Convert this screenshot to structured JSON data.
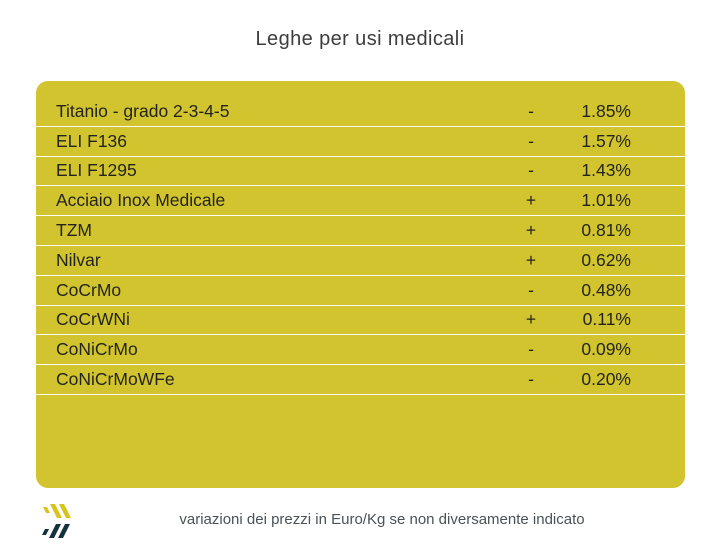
{
  "title": "Leghe per usi medicali",
  "table": {
    "rows": [
      {
        "name": "Titanio - grado 2-3-4-5",
        "sign": "-",
        "value": "1.85%"
      },
      {
        "name": "ELI F136",
        "sign": "-",
        "value": "1.57%"
      },
      {
        "name": "ELI F1295",
        "sign": "-",
        "value": "1.43%"
      },
      {
        "name": "Acciaio Inox Medicale",
        "sign": "+",
        "value": "1.01%"
      },
      {
        "name": "TZM",
        "sign": "+",
        "value": "0.81%"
      },
      {
        "name": "Nilvar",
        "sign": "+",
        "value": "0.62%"
      },
      {
        "name": "CoCrMo",
        "sign": "-",
        "value": "0.48%"
      },
      {
        "name": "CoCrWNi",
        "sign": "+",
        "value": "0.11%"
      },
      {
        "name": "CoNiCrMo",
        "sign": "-",
        "value": "0.09%"
      },
      {
        "name": "CoNiCrMoWFe",
        "sign": "-",
        "value": "0.20%"
      }
    ]
  },
  "footer": {
    "note": "variazioni dei prezzi in Euro/Kg se non diversamente indicato",
    "logo_icon": "chevrons-logo"
  },
  "colors": {
    "yellow": "#d2c42f",
    "sep": "#fdfdf6",
    "row-text": "#24241c",
    "title-text": "#3d3d3d",
    "note-text": "#4a5257",
    "logo-yellow": "#d8c41f",
    "logo-navy": "#14323e",
    "page-bg": "#ffffff"
  }
}
